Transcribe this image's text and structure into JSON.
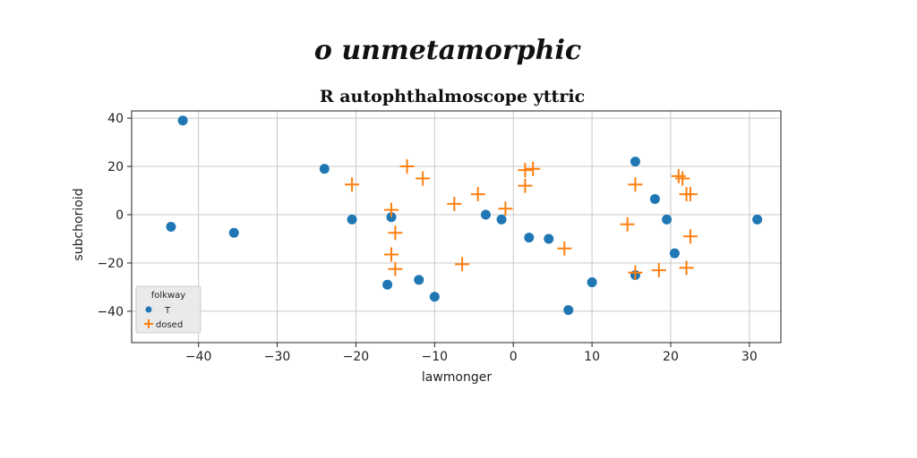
{
  "page_heading": "o unmetamorphic",
  "chart_data": {
    "type": "scatter",
    "title": "R autophthalmoscope yttric",
    "xlabel": "lawmonger",
    "ylabel": "subchorioid",
    "xlim": [
      -48.5,
      34
    ],
    "ylim": [
      -53,
      43
    ],
    "x_ticks": [
      -40,
      -30,
      -20,
      -10,
      0,
      10,
      20,
      30
    ],
    "y_ticks": [
      -40,
      -20,
      0,
      20,
      40
    ],
    "grid": true,
    "legend": {
      "title": "folkway",
      "position": "bottom-left"
    },
    "series": [
      {
        "name": "T",
        "marker": "circle",
        "color": "#1f77b4",
        "points": [
          [
            -42,
            39
          ],
          [
            -43.5,
            -5
          ],
          [
            -35.5,
            -7.5
          ],
          [
            -24,
            19
          ],
          [
            -20.5,
            -2
          ],
          [
            -15.5,
            -1
          ],
          [
            -16,
            -29
          ],
          [
            -12,
            -27
          ],
          [
            -10,
            -34
          ],
          [
            -3.5,
            0
          ],
          [
            -1.5,
            -2
          ],
          [
            2,
            -9.5
          ],
          [
            4.5,
            -10
          ],
          [
            7,
            -39.5
          ],
          [
            10,
            -28
          ],
          [
            15.5,
            22
          ],
          [
            18,
            6.5
          ],
          [
            19.5,
            -2
          ],
          [
            20.5,
            -16
          ],
          [
            15.5,
            -25
          ],
          [
            31,
            -2
          ]
        ]
      },
      {
        "name": "dosed",
        "marker": "plus",
        "color": "#ff7f0e",
        "points": [
          [
            -20.5,
            12.5
          ],
          [
            -13.5,
            20
          ],
          [
            -11.5,
            15
          ],
          [
            -15.5,
            2
          ],
          [
            -15,
            -7.5
          ],
          [
            -15.5,
            -16.5
          ],
          [
            -15,
            -22.5
          ],
          [
            -7.5,
            4.5
          ],
          [
            -4.5,
            8.5
          ],
          [
            -1,
            2.5
          ],
          [
            -6.5,
            -20.5
          ],
          [
            1.5,
            12
          ],
          [
            1.5,
            18.5
          ],
          [
            2.5,
            19
          ],
          [
            6.5,
            -14
          ],
          [
            14.5,
            -4
          ],
          [
            15.5,
            12.5
          ],
          [
            21,
            16
          ],
          [
            21.5,
            15
          ],
          [
            22,
            8.5
          ],
          [
            22.5,
            8.5
          ],
          [
            22.5,
            -9
          ],
          [
            22,
            -22
          ],
          [
            18.5,
            -23
          ],
          [
            15.5,
            -24
          ]
        ]
      }
    ]
  }
}
